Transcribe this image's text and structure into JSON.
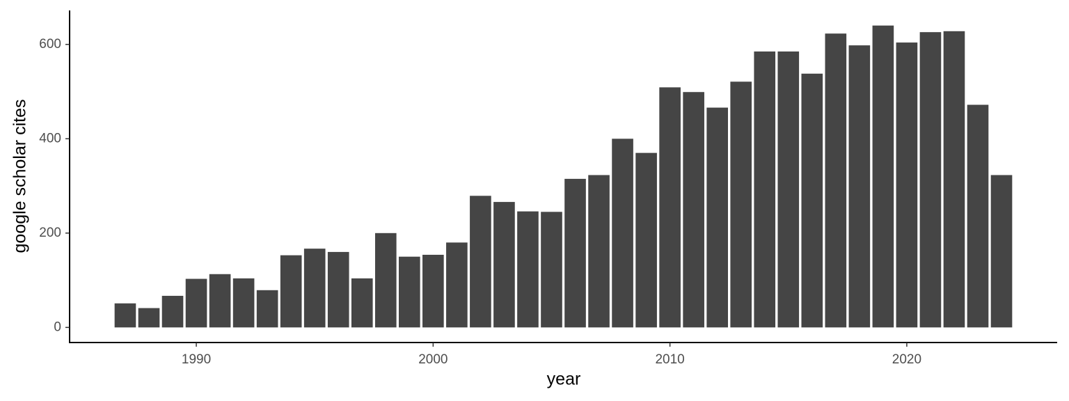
{
  "chart_data": {
    "type": "bar",
    "x_label": "year",
    "y_label": "google scholar cites",
    "x": [
      1987,
      1988,
      1989,
      1990,
      1991,
      1992,
      1993,
      1994,
      1995,
      1996,
      1997,
      1998,
      1999,
      2000,
      2001,
      2002,
      2003,
      2004,
      2005,
      2006,
      2007,
      2008,
      2009,
      2010,
      2011,
      2012,
      2013,
      2014,
      2015,
      2016,
      2017,
      2018,
      2019,
      2020,
      2021,
      2022,
      2023,
      2024
    ],
    "values": [
      51,
      41,
      67,
      103,
      113,
      104,
      79,
      153,
      167,
      160,
      104,
      200,
      150,
      154,
      180,
      279,
      266,
      246,
      245,
      315,
      323,
      400,
      370,
      509,
      499,
      466,
      521,
      585,
      585,
      538,
      623,
      598,
      640,
      604,
      626,
      628,
      472,
      323
    ],
    "color": "#454545",
    "xlim": [
      1984.65,
      2026.35
    ],
    "xticks": [
      1990,
      2000,
      2010,
      2020
    ],
    "ylim": [
      -32,
      672
    ],
    "yticks": [
      0,
      200,
      400,
      600
    ],
    "grid": false
  }
}
